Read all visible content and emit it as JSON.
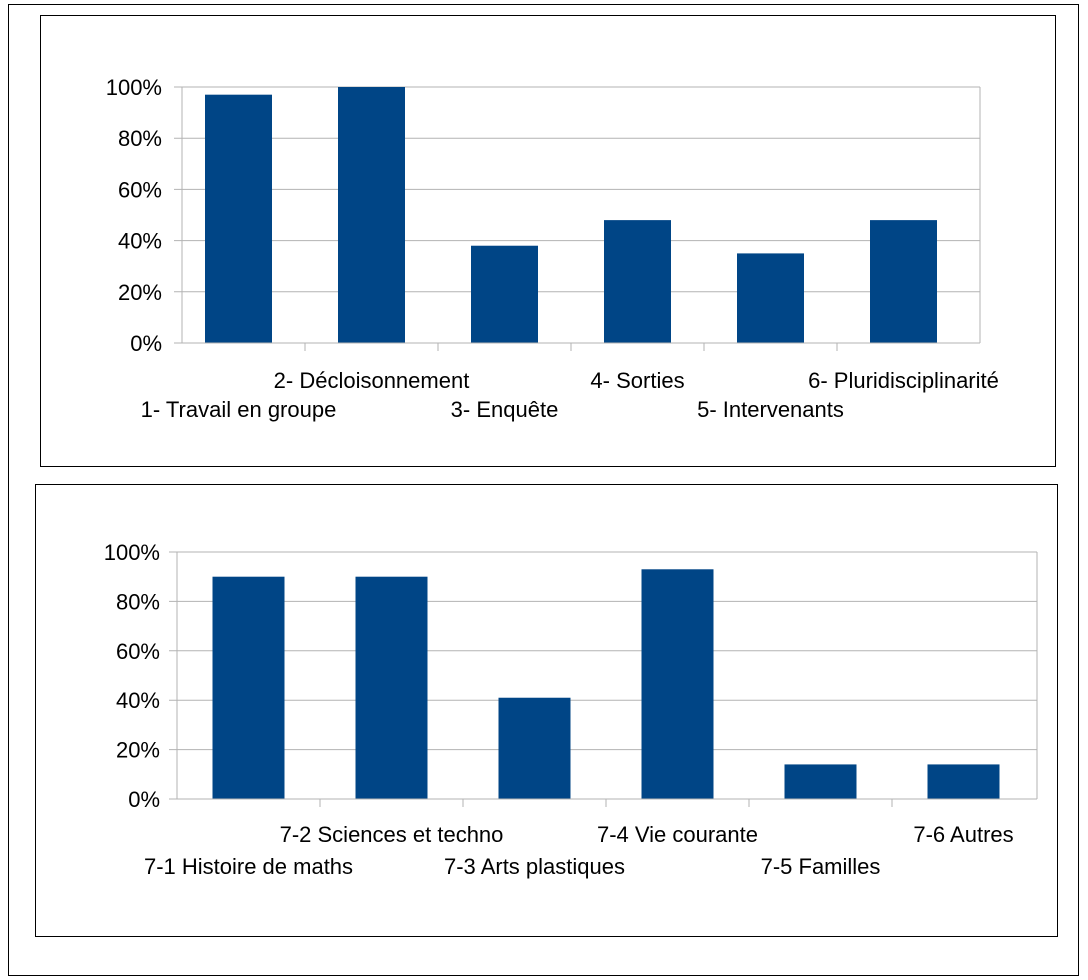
{
  "chart_data": [
    {
      "type": "bar",
      "title": "",
      "xlabel": "",
      "ylabel": "",
      "categories": [
        "1- Travail en groupe",
        "2- Décloisonnement",
        "3- Enquête",
        "4- Sorties",
        "5- Intervenants",
        "6- Pluridisciplinarité"
      ],
      "values": [
        0.97,
        1.0,
        0.38,
        0.48,
        0.35,
        0.48
      ],
      "ylim": [
        0,
        1
      ],
      "yticks": [
        "0%",
        "20%",
        "40%",
        "60%",
        "80%",
        "100%"
      ],
      "grid": true,
      "legend": "none",
      "bar_color": "#004586"
    },
    {
      "type": "bar",
      "title": "",
      "xlabel": "",
      "ylabel": "",
      "categories": [
        "7-1 Histoire de maths",
        "7-2 Sciences et techno",
        "7-3 Arts plastiques",
        "7-4 Vie courante",
        "7-5 Familles",
        "7-6 Autres"
      ],
      "values": [
        0.9,
        0.9,
        0.41,
        0.93,
        0.14,
        0.14
      ],
      "ylim": [
        0,
        1
      ],
      "yticks": [
        "0%",
        "20%",
        "40%",
        "60%",
        "80%",
        "100%"
      ],
      "grid": true,
      "legend": "none",
      "bar_color": "#004586"
    }
  ]
}
